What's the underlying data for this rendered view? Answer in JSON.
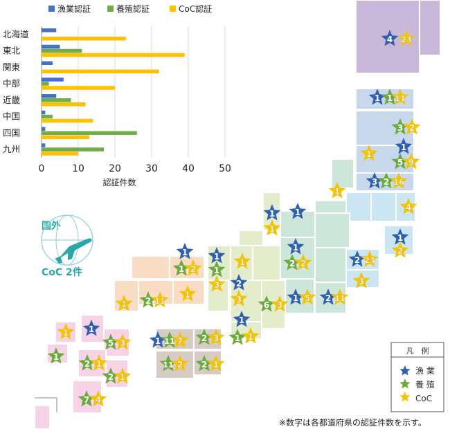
{
  "chart_data": {
    "type": "bar",
    "orientation": "horizontal",
    "categories": [
      "北海道",
      "東北",
      "関東",
      "中部",
      "近畿",
      "中国",
      "四国",
      "九州"
    ],
    "series": [
      {
        "name": "漁業認証",
        "color": "#4472C4",
        "values": [
          4,
          5,
          3,
          6,
          4,
          1,
          1,
          1
        ]
      },
      {
        "name": "養殖認証",
        "color": "#70AD47",
        "values": [
          0,
          11,
          0,
          2,
          8,
          3,
          26,
          17
        ]
      },
      {
        "name": "CoC認証",
        "color": "#FFC000",
        "values": [
          23,
          39,
          32,
          20,
          12,
          14,
          13,
          10
        ]
      }
    ],
    "xlabel": "認証件数",
    "xlim": [
      0,
      50
    ],
    "xticks": [
      "0",
      "10",
      "20",
      "30",
      "40",
      "50"
    ],
    "grid": true,
    "legend_position": "top"
  },
  "overseas": {
    "title": "国外",
    "text": "CoC 2件",
    "color": "#2AA8A8"
  },
  "legend_box": {
    "title": "凡　例",
    "items": [
      {
        "label": "漁 業",
        "color": "#2E5FB0"
      },
      {
        "label": "養 殖",
        "color": "#6BAA3F"
      },
      {
        "label": "CoC",
        "color": "#F5C400"
      }
    ]
  },
  "footnote": "※数字は各都道府県の認証件数を示す。",
  "colors": {
    "hokkaido": "#C9B8DA",
    "tohoku": "#C8D8EC",
    "kanto": "#CBE5F2",
    "chubu": "#CDE6DA",
    "kinki": "#E3ECCB",
    "chugoku": "#F8DCC3",
    "shikoku": "#D6CCC4",
    "kyushu": "#F6D3E6",
    "blue_star": "#2E5FB0",
    "green_star": "#6BAA3F",
    "yellow_star": "#F5C400"
  },
  "stars": [
    {
      "t": "b",
      "n": "4"
    },
    {
      "t": "y",
      "n": "23"
    },
    {
      "t": "b",
      "n": "1"
    },
    {
      "t": "g",
      "n": "1"
    },
    {
      "t": "y",
      "n": "11"
    },
    {
      "t": "g",
      "n": "3"
    },
    {
      "t": "y",
      "n": "2"
    },
    {
      "t": "y",
      "n": "1"
    },
    {
      "t": "b",
      "n": "1"
    },
    {
      "t": "g",
      "n": "5"
    },
    {
      "t": "y",
      "n": "9"
    },
    {
      "t": "b",
      "n": "3"
    },
    {
      "t": "g",
      "n": "2"
    },
    {
      "t": "y",
      "n": "16"
    },
    {
      "t": "y",
      "n": "1"
    },
    {
      "t": "y",
      "n": "4"
    },
    {
      "t": "b",
      "n": "1"
    },
    {
      "t": "y",
      "n": "2"
    },
    {
      "t": "b",
      "n": "2"
    },
    {
      "t": "y",
      "n": "23"
    },
    {
      "t": "y",
      "n": "3"
    },
    {
      "t": "b",
      "n": "1"
    },
    {
      "t": "y",
      "n": "5"
    },
    {
      "t": "b",
      "n": "2"
    },
    {
      "t": "y",
      "n": "11"
    },
    {
      "t": "b",
      "n": "1"
    },
    {
      "t": "y",
      "n": "1"
    },
    {
      "t": "b",
      "n": "1"
    },
    {
      "t": "b",
      "n": "1"
    },
    {
      "t": "g",
      "n": "2"
    },
    {
      "t": "y",
      "n": "2"
    },
    {
      "t": "g",
      "n": "6"
    },
    {
      "t": "y",
      "n": "3"
    },
    {
      "t": "b",
      "n": "1"
    },
    {
      "t": "g",
      "n": "1"
    },
    {
      "t": "y",
      "n": "3"
    },
    {
      "t": "b",
      "n": "2"
    },
    {
      "t": "y",
      "n": "3"
    },
    {
      "t": "y",
      "n": "1"
    },
    {
      "t": "b",
      "n": "1"
    },
    {
      "t": "g",
      "n": "1"
    },
    {
      "t": "y",
      "n": "1"
    },
    {
      "t": "b",
      "n": "1"
    },
    {
      "t": "g",
      "n": "1"
    },
    {
      "t": "y",
      "n": "2"
    },
    {
      "t": "y",
      "n": "1"
    },
    {
      "t": "g",
      "n": "2"
    },
    {
      "t": "y",
      "n": "11"
    },
    {
      "t": "y",
      "n": "1"
    },
    {
      "t": "b",
      "n": "1"
    },
    {
      "t": "g",
      "n": "11"
    },
    {
      "t": "y",
      "n": "7"
    },
    {
      "t": "g",
      "n": "2"
    },
    {
      "t": "y",
      "n": "3"
    },
    {
      "t": "g",
      "n": "11"
    },
    {
      "t": "y",
      "n": "2"
    },
    {
      "t": "g",
      "n": "2"
    },
    {
      "t": "y",
      "n": "1"
    },
    {
      "t": "y",
      "n": "1"
    },
    {
      "t": "b",
      "n": "1"
    },
    {
      "t": "g",
      "n": "5"
    },
    {
      "t": "y",
      "n": "3"
    },
    {
      "t": "g",
      "n": "1"
    },
    {
      "t": "g",
      "n": "2"
    },
    {
      "t": "y",
      "n": "1"
    },
    {
      "t": "g",
      "n": "2"
    },
    {
      "t": "y",
      "n": "1"
    },
    {
      "t": "g",
      "n": "7"
    },
    {
      "t": "y",
      "n": "4"
    }
  ]
}
